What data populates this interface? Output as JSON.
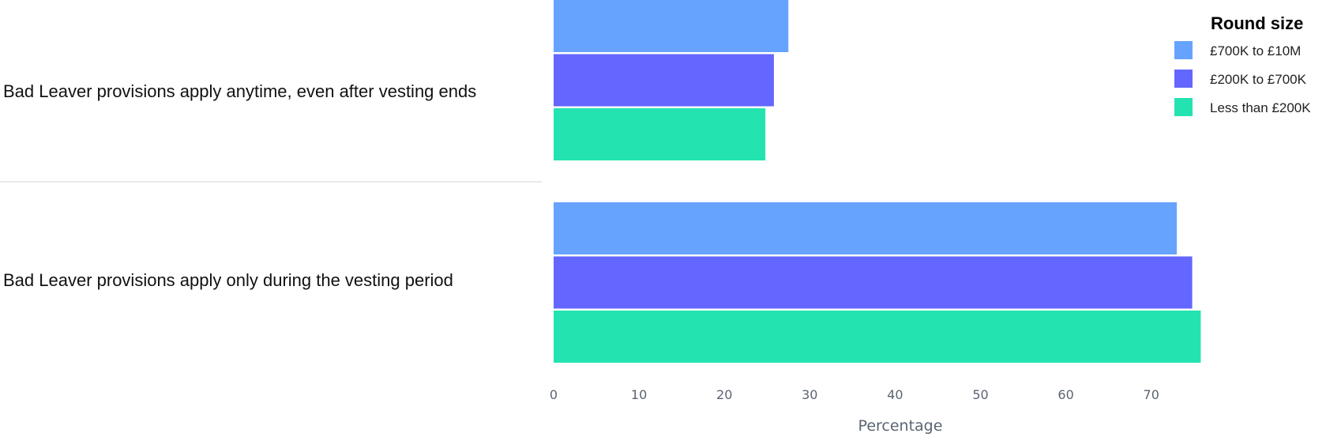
{
  "chart_data": {
    "type": "bar",
    "orientation": "horizontal",
    "categories": [
      "Bad Leaver provisions apply anytime, even after vesting ends",
      "Bad Leaver provisions apply only during the vesting period"
    ],
    "series": [
      {
        "name": "£700K to £10M",
        "color": "#66a3ff",
        "values": [
          27.5,
          73
        ]
      },
      {
        "name": "£200K to £700K",
        "color": "#6366ff",
        "values": [
          25.8,
          74.8
        ]
      },
      {
        "name": "Less than £200K",
        "color": "#23e3b1",
        "values": [
          24.8,
          75.8
        ]
      }
    ],
    "xlabel": "Percentage",
    "xlim": [
      0,
      79
    ],
    "xticks": [
      0,
      10,
      20,
      30,
      40,
      50,
      60,
      70
    ],
    "legend": {
      "title": "Round size",
      "placement": "top-right"
    },
    "grid": false
  }
}
